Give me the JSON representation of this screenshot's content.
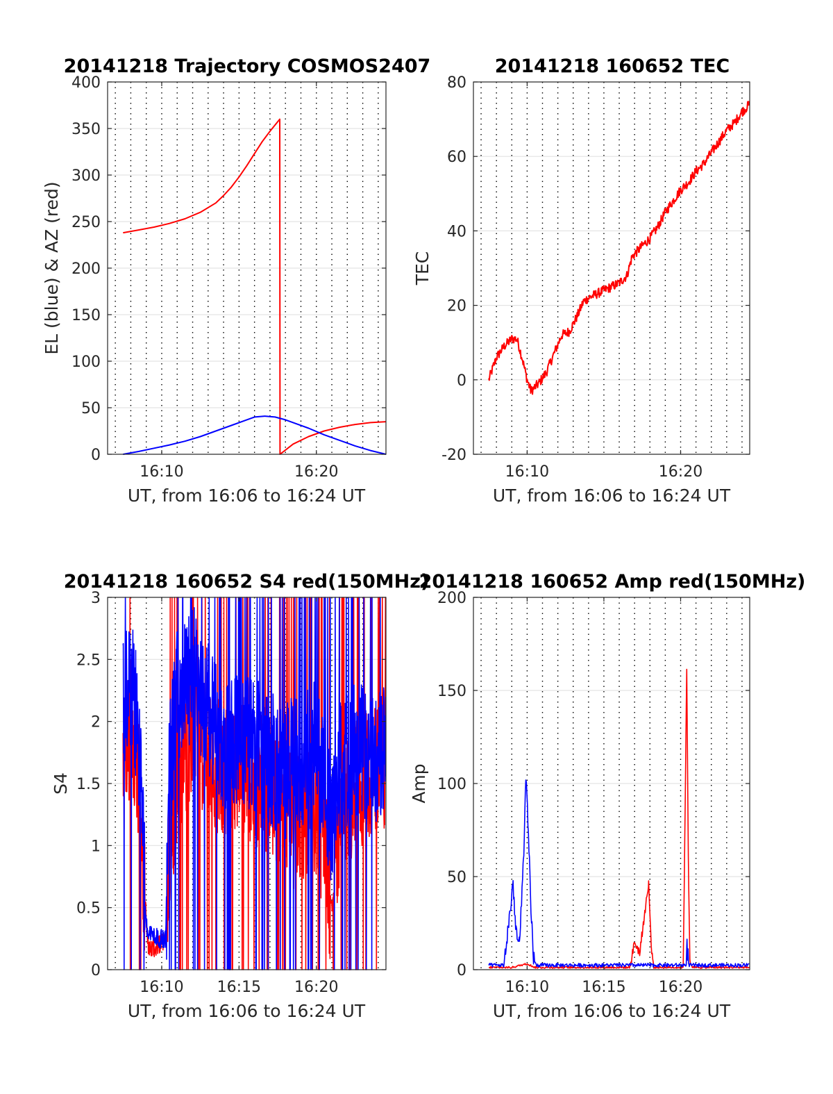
{
  "colors": {
    "el": "#0000ff",
    "az": "#ff0000",
    "tec": "#ff0000",
    "red": "#ff0000",
    "blue": "#0000ff"
  },
  "chart_data": [
    {
      "id": "trajectory",
      "type": "line",
      "title": "20141218 Trajectory COSMOS2407",
      "xlabel": "UT, from 16:06 to 16:24 UT",
      "ylabel": "EL (blue) & AZ (red)",
      "xlim": [
        "16:06:30",
        "16:24:30"
      ],
      "ylim": [
        0,
        400
      ],
      "yticks": [
        0,
        50,
        100,
        150,
        200,
        250,
        300,
        350,
        400
      ],
      "xticks": [
        {
          "t": "16:10",
          "label": "16:10"
        },
        {
          "t": "16:20",
          "label": "16:20"
        }
      ],
      "grid": true,
      "series": [
        {
          "role": "AZ",
          "color": "red",
          "points": [
            [
              "16:07:30",
              238
            ],
            [
              "16:08:30",
              241
            ],
            [
              "16:09:30",
              244
            ],
            [
              "16:10:30",
              248
            ],
            [
              "16:11:30",
              253
            ],
            [
              "16:12:30",
              260
            ],
            [
              "16:13:30",
              270
            ],
            [
              "16:14:00",
              278
            ],
            [
              "16:14:30",
              287
            ],
            [
              "16:15:00",
              298
            ],
            [
              "16:15:30",
              310
            ],
            [
              "16:16:00",
              323
            ],
            [
              "16:16:30",
              336
            ],
            [
              "16:17:00",
              347
            ],
            [
              "16:17:38",
              360
            ],
            [
              "16:17:39",
              0
            ],
            [
              "16:18:30",
              11
            ],
            [
              "16:19:30",
              19
            ],
            [
              "16:20:30",
              25
            ],
            [
              "16:21:30",
              29
            ],
            [
              "16:22:30",
              32
            ],
            [
              "16:23:30",
              34
            ],
            [
              "16:24:30",
              35
            ]
          ]
        },
        {
          "role": "EL",
          "color": "blue",
          "points": [
            [
              "16:07:30",
              0
            ],
            [
              "16:08:30",
              3
            ],
            [
              "16:09:30",
              6.5
            ],
            [
              "16:10:30",
              10
            ],
            [
              "16:11:30",
              14
            ],
            [
              "16:12:30",
              19
            ],
            [
              "16:13:30",
              25
            ],
            [
              "16:14:30",
              31
            ],
            [
              "16:15:30",
              37
            ],
            [
              "16:16:00",
              40
            ],
            [
              "16:16:40",
              41
            ],
            [
              "16:17:20",
              40
            ],
            [
              "16:18:00",
              37
            ],
            [
              "16:18:30",
              34
            ],
            [
              "16:19:30",
              28
            ],
            [
              "16:20:30",
              21
            ],
            [
              "16:21:30",
              15
            ],
            [
              "16:22:30",
              9
            ],
            [
              "16:23:30",
              4
            ],
            [
              "16:24:30",
              0
            ]
          ]
        }
      ]
    },
    {
      "id": "tec",
      "type": "line",
      "title": "20141218 160652 TEC",
      "xlabel": "UT, from 16:06 to 16:24 UT",
      "ylabel": "TEC",
      "xlim": [
        "16:06:30",
        "16:24:30"
      ],
      "ylim": [
        -20,
        80
      ],
      "yticks": [
        -20,
        0,
        20,
        40,
        60,
        80
      ],
      "xticks": [
        {
          "t": "16:10",
          "label": "16:10"
        },
        {
          "t": "16:20",
          "label": "16:20"
        }
      ],
      "grid": true,
      "noise": 1.3,
      "series": [
        {
          "color": "red",
          "points": [
            [
              "16:07:30",
              0
            ],
            [
              "16:08:00",
              6
            ],
            [
              "16:08:30",
              9
            ],
            [
              "16:09:00",
              11
            ],
            [
              "16:09:20",
              11
            ],
            [
              "16:09:40",
              6
            ],
            [
              "16:10:00",
              0
            ],
            [
              "16:10:15",
              -3
            ],
            [
              "16:10:45",
              -1
            ],
            [
              "16:11:15",
              2
            ],
            [
              "16:11:45",
              7
            ],
            [
              "16:12:15",
              12
            ],
            [
              "16:12:45",
              13
            ],
            [
              "16:13:15",
              17
            ],
            [
              "16:13:40",
              21
            ],
            [
              "16:14:00",
              22
            ],
            [
              "16:14:30",
              23
            ],
            [
              "16:15:00",
              24
            ],
            [
              "16:15:30",
              25
            ],
            [
              "16:16:00",
              26
            ],
            [
              "16:16:30",
              28
            ],
            [
              "16:16:50",
              33
            ],
            [
              "16:17:30",
              36
            ],
            [
              "16:18:00",
              38
            ],
            [
              "16:18:30",
              41
            ],
            [
              "16:19:00",
              45
            ],
            [
              "16:19:30",
              48
            ],
            [
              "16:20:00",
              51
            ],
            [
              "16:20:30",
              53
            ],
            [
              "16:21:00",
              56
            ],
            [
              "16:21:30",
              58
            ],
            [
              "16:22:00",
              61
            ],
            [
              "16:22:30",
              64
            ],
            [
              "16:23:00",
              67
            ],
            [
              "16:23:30",
              69
            ],
            [
              "16:24:00",
              72
            ],
            [
              "16:24:30",
              74
            ]
          ]
        }
      ]
    },
    {
      "id": "s4",
      "type": "line",
      "title": "20141218 160652 S4 red(150MHz)",
      "xlabel": "UT, from 16:06 to 16:24 UT",
      "ylabel": "S4",
      "xlim": [
        "16:06:30",
        "16:24:30"
      ],
      "ylim": [
        0,
        3
      ],
      "yticks": [
        0,
        0.5,
        1,
        1.5,
        2,
        2.5,
        3
      ],
      "xticks": [
        {
          "t": "16:10",
          "label": "16:10"
        },
        {
          "t": "16:15",
          "label": "16:15"
        },
        {
          "t": "16:20",
          "label": "16:20"
        }
      ],
      "grid": true,
      "noise": 0.9,
      "series": [
        {
          "color": "red",
          "points": [
            [
              "16:07:30",
              1.6
            ],
            [
              "16:08:00",
              2.0
            ],
            [
              "16:08:30",
              1.6
            ],
            [
              "16:09:00",
              0.4
            ],
            [
              "16:09:10",
              0.15
            ],
            [
              "16:09:50",
              0.2
            ],
            [
              "16:10:15",
              0.25
            ],
            [
              "16:10:30",
              1.0
            ],
            [
              "16:11:00",
              1.5
            ],
            [
              "16:12:00",
              2.0
            ],
            [
              "16:13:00",
              1.7
            ],
            [
              "16:14:00",
              1.6
            ],
            [
              "16:15:00",
              1.7
            ],
            [
              "16:16:00",
              1.5
            ],
            [
              "16:17:00",
              1.5
            ],
            [
              "16:18:00",
              1.2
            ],
            [
              "16:19:00",
              1.2
            ],
            [
              "16:20:00",
              1.3
            ],
            [
              "16:20:30",
              1.0
            ],
            [
              "16:21:00",
              0.5
            ],
            [
              "16:21:30",
              1.2
            ],
            [
              "16:22:30",
              1.5
            ],
            [
              "16:23:30",
              1.6
            ],
            [
              "16:24:30",
              1.7
            ]
          ]
        },
        {
          "color": "blue",
          "points": [
            [
              "16:07:30",
              2.1
            ],
            [
              "16:08:00",
              2.3
            ],
            [
              "16:08:30",
              1.9
            ],
            [
              "16:09:00",
              0.35
            ],
            [
              "16:09:10",
              0.3
            ],
            [
              "16:09:50",
              0.25
            ],
            [
              "16:10:15",
              0.25
            ],
            [
              "16:10:30",
              1.6
            ],
            [
              "16:11:00",
              2.2
            ],
            [
              "16:12:00",
              2.4
            ],
            [
              "16:13:00",
              2.1
            ],
            [
              "16:14:00",
              1.8
            ],
            [
              "16:15:00",
              1.9
            ],
            [
              "16:16:00",
              1.8
            ],
            [
              "16:17:00",
              1.7
            ],
            [
              "16:18:00",
              1.6
            ],
            [
              "16:19:00",
              1.7
            ],
            [
              "16:20:00",
              1.8
            ],
            [
              "16:20:30",
              1.5
            ],
            [
              "16:21:00",
              1.1
            ],
            [
              "16:21:30",
              1.6
            ],
            [
              "16:22:30",
              1.8
            ],
            [
              "16:23:30",
              1.7
            ],
            [
              "16:24:30",
              1.8
            ]
          ]
        }
      ]
    },
    {
      "id": "amp",
      "type": "line",
      "title": "20141218 160652 Amp red(150MHz)",
      "xlabel": "UT, from 16:06 to 16:24 UT",
      "ylabel": "Amp",
      "xlim": [
        "16:06:30",
        "16:24:30"
      ],
      "ylim": [
        0,
        200
      ],
      "yticks": [
        0,
        50,
        100,
        150,
        200
      ],
      "xticks": [
        {
          "t": "16:10",
          "label": "16:10"
        },
        {
          "t": "16:15",
          "label": "16:15"
        },
        {
          "t": "16:20",
          "label": "16:20"
        }
      ],
      "grid": true,
      "series": [
        {
          "color": "red",
          "noise": 1.0,
          "points": [
            [
              "16:07:30",
              1
            ],
            [
              "16:09:00",
              1
            ],
            [
              "16:09:30",
              2
            ],
            [
              "16:10:00",
              3
            ],
            [
              "16:10:15",
              2
            ],
            [
              "16:10:30",
              1
            ],
            [
              "16:16:40",
              1
            ],
            [
              "16:16:50",
              6
            ],
            [
              "16:17:00",
              14
            ],
            [
              "16:17:20",
              8
            ],
            [
              "16:17:40",
              30
            ],
            [
              "16:17:55",
              45
            ],
            [
              "16:18:05",
              12
            ],
            [
              "16:18:15",
              1
            ],
            [
              "16:20:10",
              1
            ],
            [
              "16:20:18",
              90
            ],
            [
              "16:20:24",
              162
            ],
            [
              "16:20:30",
              60
            ],
            [
              "16:20:36",
              5
            ],
            [
              "16:20:45",
              1
            ],
            [
              "16:24:30",
              1
            ]
          ]
        },
        {
          "color": "blue",
          "noise": 2.0,
          "points": [
            [
              "16:07:30",
              2
            ],
            [
              "16:08:30",
              2
            ],
            [
              "16:08:50",
              25
            ],
            [
              "16:09:05",
              45
            ],
            [
              "16:09:15",
              20
            ],
            [
              "16:09:30",
              10
            ],
            [
              "16:09:45",
              55
            ],
            [
              "16:09:55",
              100
            ],
            [
              "16:10:05",
              70
            ],
            [
              "16:10:15",
              30
            ],
            [
              "16:10:25",
              5
            ],
            [
              "16:10:35",
              2
            ],
            [
              "16:20:20",
              2
            ],
            [
              "16:20:25",
              10
            ],
            [
              "16:20:32",
              2
            ],
            [
              "16:24:30",
              2
            ]
          ]
        }
      ]
    }
  ]
}
